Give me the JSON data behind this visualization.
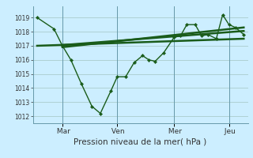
{
  "xlabel": "Pression niveau de la mer( hPa )",
  "bg_color": "#cceeff",
  "line_color": "#1a5c1a",
  "grid_color": "#aacccc",
  "yticks": [
    1012,
    1013,
    1014,
    1015,
    1016,
    1017,
    1018,
    1019
  ],
  "ylim": [
    1011.5,
    1019.8
  ],
  "day_labels": [
    " Mar",
    " Ven",
    " Mer",
    " Jeu"
  ],
  "day_positions": [
    0.14,
    0.4,
    0.67,
    0.93
  ],
  "main_x": [
    0.02,
    0.1,
    0.14,
    0.18,
    0.23,
    0.28,
    0.32,
    0.37,
    0.4,
    0.44,
    0.48,
    0.52,
    0.55,
    0.58,
    0.62,
    0.67,
    0.7,
    0.73,
    0.77,
    0.8,
    0.83,
    0.87,
    0.9,
    0.93,
    0.96,
    1.0
  ],
  "main_y": [
    1019.0,
    1018.2,
    1017.0,
    1016.0,
    1014.3,
    1012.7,
    1012.2,
    1013.8,
    1014.8,
    1014.8,
    1015.8,
    1016.3,
    1016.0,
    1015.9,
    1016.5,
    1017.6,
    1017.7,
    1018.5,
    1018.5,
    1017.7,
    1017.8,
    1017.5,
    1019.2,
    1018.5,
    1018.3,
    1017.8
  ],
  "trend1_x": [
    0.02,
    1.0
  ],
  "trend1_y": [
    1017.0,
    1017.5
  ],
  "trend2_x": [
    0.14,
    1.0
  ],
  "trend2_y": [
    1016.9,
    1018.3
  ],
  "trend3_x": [
    0.14,
    1.0
  ],
  "trend3_y": [
    1017.05,
    1018.05
  ],
  "xlim": [
    0.0,
    1.02
  ]
}
